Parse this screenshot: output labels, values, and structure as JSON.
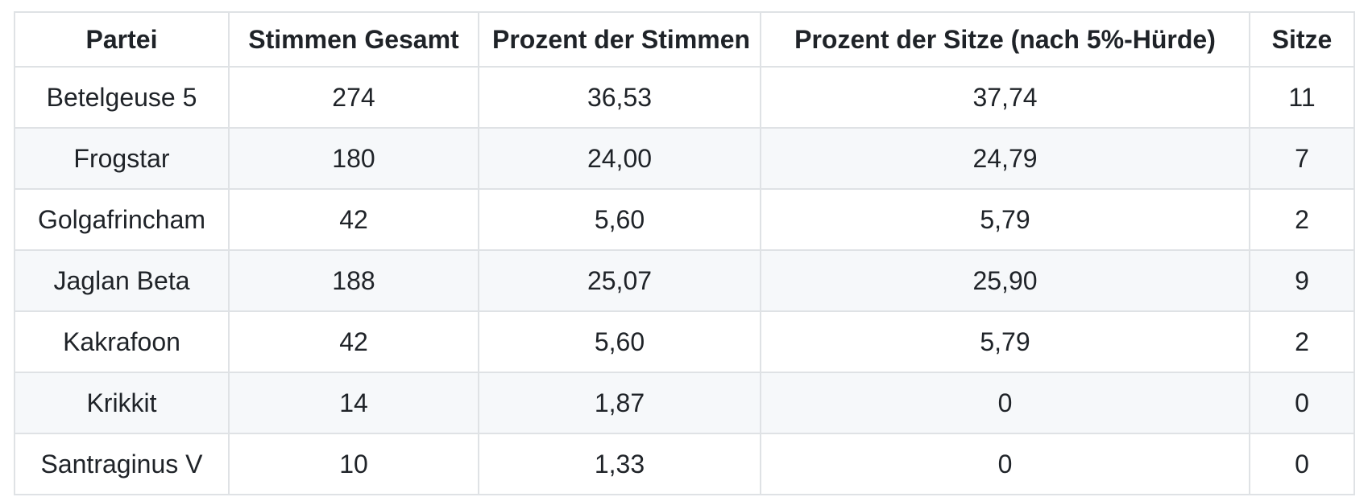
{
  "table": {
    "columns": [
      "Partei",
      "Stimmen Gesamt",
      "Prozent der Stimmen",
      "Prozent der Sitze (nach 5%-Hürde)",
      "Sitze"
    ],
    "rows": [
      [
        "Betelgeuse 5",
        "274",
        "36,53",
        "37,74",
        "11"
      ],
      [
        "Frogstar",
        "180",
        "24,00",
        "24,79",
        "7"
      ],
      [
        "Golgafrincham",
        "42",
        "5,60",
        "5,79",
        "2"
      ],
      [
        "Jaglan Beta",
        "188",
        "25,07",
        "25,90",
        "9"
      ],
      [
        "Kakrafoon",
        "42",
        "5,60",
        "5,79",
        "2"
      ],
      [
        "Krikkit",
        "14",
        "1,87",
        "0",
        "0"
      ],
      [
        "Santraginus V",
        "10",
        "1,33",
        "0",
        "0"
      ]
    ],
    "colors": {
      "text": "#1f2328",
      "border": "#dfe2e5",
      "stripe": "#f6f8fa",
      "background": "#ffffff"
    }
  },
  "chart_data": {
    "type": "table",
    "title": "",
    "columns": [
      "Partei",
      "Stimmen Gesamt",
      "Prozent der Stimmen",
      "Prozent der Sitze (nach 5%-Hürde)",
      "Sitze"
    ],
    "rows": [
      [
        "Betelgeuse 5",
        274,
        36.53,
        37.74,
        11
      ],
      [
        "Frogstar",
        180,
        24.0,
        24.79,
        7
      ],
      [
        "Golgafrincham",
        42,
        5.6,
        5.79,
        2
      ],
      [
        "Jaglan Beta",
        188,
        25.07,
        25.9,
        9
      ],
      [
        "Kakrafoon",
        42,
        5.6,
        5.79,
        2
      ],
      [
        "Krikkit",
        14,
        1.87,
        0,
        0
      ],
      [
        "Santraginus V",
        10,
        1.33,
        0,
        0
      ]
    ]
  }
}
